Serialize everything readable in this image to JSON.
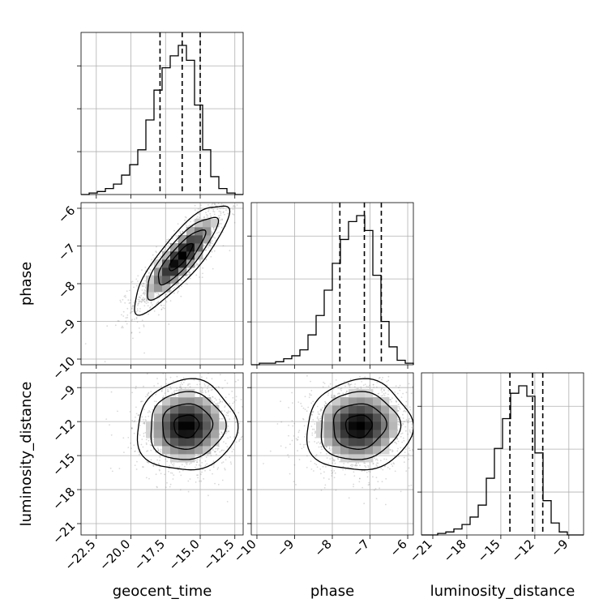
{
  "chart_data": {
    "type": "corner",
    "parameters": [
      "geocent_time",
      "phase",
      "luminosity_distance"
    ],
    "axis_labels": {
      "x": [
        "geocent_time",
        "phase",
        "luminosity_distance"
      ],
      "y": [
        "phase",
        "luminosity_distance"
      ]
    },
    "ranges": {
      "geocent_time": [
        -23.6,
        -11.9
      ],
      "phase": [
        -10.15,
        -5.85
      ],
      "luminosity_distance": [
        -22.0,
        -7.7
      ]
    },
    "ticks": {
      "geocent_time": {
        "values": [
          -22.5,
          -20.0,
          -17.5,
          -15.0,
          -12.5
        ],
        "labels": [
          "−22.5",
          "−20.0",
          "−17.5",
          "−15.0",
          "−12.5"
        ]
      },
      "phase": {
        "values": [
          -10,
          -9,
          -8,
          -7,
          -6
        ],
        "labels": [
          "−10",
          "−9",
          "−8",
          "−7",
          "−6"
        ]
      },
      "luminosity_distance": {
        "values": [
          -21,
          -18,
          -15,
          -12,
          -9
        ],
        "labels": [
          "−21",
          "−18",
          "−15",
          "−12",
          "−9"
        ]
      }
    },
    "marginals": {
      "geocent_time": {
        "bin_edges_range": [
          -23.6,
          -11.9
        ],
        "bins": 20,
        "counts": [
          0.0,
          0.01,
          0.02,
          0.04,
          0.07,
          0.13,
          0.2,
          0.3,
          0.5,
          0.7,
          0.85,
          0.93,
          1.0,
          0.9,
          0.6,
          0.3,
          0.12,
          0.04,
          0.01,
          0.0
        ],
        "quantiles": [
          -17.9,
          -16.3,
          -15.0
        ]
      },
      "phase": {
        "bin_edges_range": [
          -10.15,
          -5.85
        ],
        "bins": 20,
        "counts": [
          0.0,
          0.01,
          0.01,
          0.02,
          0.04,
          0.06,
          0.1,
          0.2,
          0.33,
          0.5,
          0.68,
          0.84,
          0.96,
          1.0,
          0.9,
          0.6,
          0.29,
          0.12,
          0.03,
          0.01
        ],
        "quantiles": [
          -7.8,
          -7.15,
          -6.7
        ]
      },
      "luminosity_distance": {
        "bin_edges_range": [
          -22.0,
          -7.7
        ],
        "bins": 20,
        "counts": [
          0.0,
          0.0,
          0.01,
          0.02,
          0.04,
          0.07,
          0.12,
          0.2,
          0.38,
          0.58,
          0.78,
          0.95,
          1.0,
          0.93,
          0.55,
          0.23,
          0.08,
          0.02,
          0.0,
          0.0
        ],
        "quantiles": [
          -14.2,
          -12.2,
          -11.3
        ]
      }
    },
    "joint": [
      {
        "x_param": "geocent_time",
        "y_param": "phase",
        "mean": [
          -16.4,
          -7.3
        ],
        "std": [
          1.7,
          0.72
        ],
        "correlation": 0.85
      },
      {
        "x_param": "geocent_time",
        "y_param": "luminosity_distance",
        "mean": [
          -16.0,
          -12.4
        ],
        "std": [
          1.8,
          2.0
        ],
        "correlation": 0.05
      },
      {
        "x_param": "phase",
        "y_param": "luminosity_distance",
        "mean": [
          -7.3,
          -12.4
        ],
        "std": [
          0.7,
          2.0
        ],
        "correlation": 0.05
      }
    ],
    "contour_levels_sigma": [
      0.5,
      1.0,
      1.5,
      2.0
    ],
    "grid": true
  }
}
